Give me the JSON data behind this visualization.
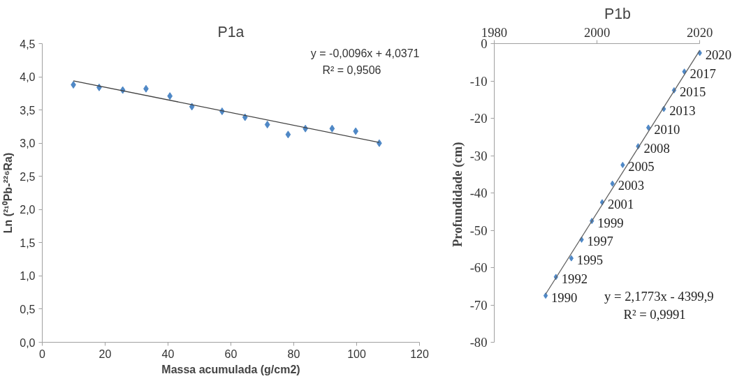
{
  "chart_data": [
    {
      "type": "scatter",
      "title": "P1a",
      "xlabel": "Massa acumulada (g/cm2)",
      "ylabel": "Ln (²¹⁰Pb-²²⁶Ra)",
      "xlim": [
        0,
        120
      ],
      "xticks": [
        0,
        20,
        40,
        60,
        80,
        100,
        120
      ],
      "ylim": [
        0,
        4.5
      ],
      "yticks": [
        {
          "value": 0,
          "label": "0,0"
        },
        {
          "value": 0.5,
          "label": "0,5"
        },
        {
          "value": 1,
          "label": "1,0"
        },
        {
          "value": 1.5,
          "label": "1,5"
        },
        {
          "value": 2,
          "label": "2,0"
        },
        {
          "value": 2.5,
          "label": "2,5"
        },
        {
          "value": 3,
          "label": "3,0"
        },
        {
          "value": 3.5,
          "label": "3,5"
        },
        {
          "value": 4,
          "label": "4,0"
        },
        {
          "value": 4.5,
          "label": "4,5"
        }
      ],
      "grid": false,
      "marker": "diamond",
      "annotations": [
        "y = -0,0096x + 4,0371",
        "R² = 0,9506"
      ],
      "series": [
        {
          "color": "#4f88c6",
          "x": [
            9.9,
            18.1,
            25.6,
            33.0,
            40.6,
            47.6,
            57.2,
            64.5,
            71.6,
            78.2,
            83.7,
            92.2,
            99.7,
            107.2
          ],
          "values": [
            3.88,
            3.84,
            3.8,
            3.82,
            3.71,
            3.55,
            3.48,
            3.39,
            3.28,
            3.13,
            3.22,
            3.22,
            3.18,
            3.0
          ]
        },
        {
          "type": "line",
          "marker": "none",
          "color": "#404040",
          "x": [
            9.9,
            107.2
          ],
          "values": [
            3.94,
            3.01
          ]
        }
      ]
    },
    {
      "type": "scatter",
      "title": "P1b",
      "ylabel": "Profundidade  (cm)",
      "xlim": [
        1980,
        2020
      ],
      "xticks": [
        1980,
        2000,
        2020
      ],
      "ylim": [
        -80,
        0
      ],
      "yticks": [
        -80,
        -70,
        -60,
        -50,
        -40,
        -30,
        -20,
        -10,
        0
      ],
      "grid": false,
      "marker": "diamond",
      "annotations": [
        {
          "text": "1990",
          "x": 1990,
          "y": -67.5
        },
        {
          "text": "1992",
          "x": 1992,
          "y": -62.5
        },
        {
          "text": "1995",
          "x": 1995,
          "y": -57.5
        },
        {
          "text": "1997",
          "x": 1997,
          "y": -52.5
        },
        {
          "text": "1999",
          "x": 1999,
          "y": -47.5
        },
        {
          "text": "2001",
          "x": 2001,
          "y": -42.5
        },
        {
          "text": "2003",
          "x": 2003,
          "y": -37.5
        },
        {
          "text": "2005",
          "x": 2005,
          "y": -32.5
        },
        {
          "text": "2008",
          "x": 2008,
          "y": -27.5
        },
        {
          "text": "2010",
          "x": 2010,
          "y": -22.5
        },
        {
          "text": "2013",
          "x": 2013,
          "y": -17.5
        },
        {
          "text": "2015",
          "x": 2015,
          "y": -12.5
        },
        {
          "text": "2017",
          "x": 2017,
          "y": -7.5
        },
        {
          "text": "2020",
          "x": 2020,
          "y": -2.5
        },
        "y = 2,1773x - 4399,9",
        "R² = 0,9991"
      ],
      "series": [
        {
          "color": "#4f88c6",
          "x": [
            1990,
            1992,
            1995,
            1997,
            1999,
            2001,
            2003,
            2005,
            2008,
            2010,
            2013,
            2015,
            2017,
            2020
          ],
          "values": [
            -67.5,
            -62.5,
            -57.5,
            -52.5,
            -47.5,
            -42.5,
            -37.5,
            -32.5,
            -27.5,
            -22.5,
            -17.5,
            -12.5,
            -7.5,
            -2.5
          ]
        },
        {
          "type": "line",
          "marker": "none",
          "color": "#606060",
          "x": [
            1990,
            2020
          ],
          "values": [
            -67.1,
            -1.8
          ]
        }
      ]
    }
  ]
}
